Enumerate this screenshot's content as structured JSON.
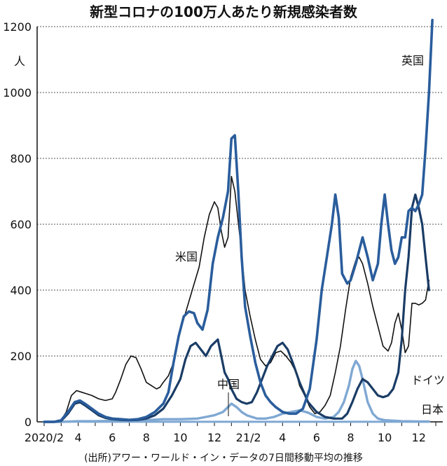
{
  "chart_data": {
    "type": "line",
    "title": "新型コロナの100万人あたり新規感染者数",
    "source": "(出所)アワー・ワールド・イン・データの7日間移動平均の推移",
    "yunit": "人",
    "ylim": [
      0,
      1200
    ],
    "yticks": [
      0,
      200,
      400,
      600,
      800,
      1000,
      1200
    ],
    "xlim": [
      0,
      23
    ],
    "xticks": [
      {
        "x": 0,
        "label": "2020/2"
      },
      {
        "x": 2,
        "label": "4"
      },
      {
        "x": 4,
        "label": "6"
      },
      {
        "x": 6,
        "label": "8"
      },
      {
        "x": 8,
        "label": "10"
      },
      {
        "x": 10,
        "label": "12"
      },
      {
        "x": 12,
        "label": "21/2"
      },
      {
        "x": 14,
        "label": "4"
      },
      {
        "x": 16,
        "label": "6"
      },
      {
        "x": 18,
        "label": "8"
      },
      {
        "x": 20,
        "label": "10"
      },
      {
        "x": 22,
        "label": "12"
      }
    ],
    "grid": true,
    "series": [
      {
        "name": "米国",
        "color": "#111111",
        "x": [
          0,
          0.5,
          1,
          1.3,
          1.6,
          1.9,
          2.2,
          2.5,
          2.8,
          3.2,
          3.6,
          4,
          4.2,
          4.5,
          4.8,
          5.1,
          5.4,
          5.7,
          6,
          6.3,
          6.6,
          6.8,
          7,
          7.3,
          7.6,
          7.9,
          8.3,
          8.7,
          9.1,
          9.4,
          9.7,
          10,
          10.2,
          10.4,
          10.6,
          10.8,
          11,
          11.2,
          11.5,
          11.8,
          12.1,
          12.4,
          12.7,
          13,
          13.3,
          13.6,
          13.9,
          14.2,
          14.5,
          14.8,
          15,
          15.3,
          15.6,
          15.9,
          16.2,
          16.5,
          16.8,
          17.1,
          17.4,
          17.7,
          18,
          18.3,
          18.5,
          18.7,
          19,
          19.3,
          19.6,
          19.9,
          20.2,
          20.4,
          20.6,
          20.8,
          21,
          21.2,
          21.4,
          21.6,
          21.8,
          22,
          22.2,
          22.4,
          22.6
        ],
        "y": [
          0,
          0,
          5,
          30,
          80,
          95,
          90,
          85,
          80,
          70,
          65,
          70,
          90,
          130,
          175,
          200,
          195,
          160,
          120,
          110,
          100,
          105,
          120,
          140,
          180,
          260,
          330,
          400,
          470,
          560,
          630,
          668,
          650,
          580,
          530,
          560,
          745,
          700,
          560,
          400,
          320,
          250,
          190,
          170,
          180,
          210,
          215,
          200,
          180,
          150,
          110,
          80,
          45,
          25,
          30,
          50,
          80,
          150,
          230,
          340,
          440,
          490,
          500,
          480,
          420,
          350,
          290,
          230,
          215,
          240,
          300,
          330,
          280,
          210,
          230,
          360,
          360,
          355,
          360,
          370,
          430
        ]
      },
      {
        "name": "英国",
        "color": "#2a5d9c",
        "x": [
          0,
          0.6,
          1,
          1.4,
          1.8,
          2.1,
          2.4,
          2.8,
          3.2,
          3.6,
          4,
          4.5,
          5,
          5.5,
          6,
          6.5,
          7,
          7.3,
          7.6,
          7.9,
          8.2,
          8.5,
          8.8,
          9,
          9.3,
          9.6,
          9.9,
          10.2,
          10.5,
          10.8,
          11,
          11.2,
          11.4,
          11.6,
          11.8,
          12.1,
          12.4,
          12.7,
          13,
          13.3,
          13.6,
          14,
          14.4,
          14.8,
          15.2,
          15.6,
          16,
          16.3,
          16.6,
          16.9,
          17.1,
          17.3,
          17.5,
          17.8,
          18,
          18.3,
          18.5,
          18.7,
          19,
          19.3,
          19.6,
          19.8,
          20,
          20.2,
          20.4,
          20.6,
          20.8,
          21,
          21.2,
          21.4,
          21.6,
          21.8,
          22,
          22.2,
          22.4,
          22.6,
          22.8
        ],
        "y": [
          0,
          0,
          5,
          30,
          60,
          65,
          55,
          40,
          25,
          15,
          10,
          8,
          6,
          8,
          15,
          30,
          55,
          90,
          180,
          260,
          320,
          335,
          330,
          300,
          280,
          340,
          480,
          560,
          620,
          700,
          860,
          870,
          700,
          500,
          350,
          260,
          180,
          120,
          80,
          60,
          45,
          30,
          25,
          25,
          40,
          100,
          250,
          400,
          500,
          600,
          690,
          620,
          450,
          420,
          430,
          480,
          520,
          560,
          500,
          430,
          480,
          600,
          690,
          600,
          520,
          480,
          500,
          560,
          560,
          640,
          650,
          640,
          660,
          690,
          830,
          1000,
          1220
        ]
      },
      {
        "name": "ドイツ",
        "color": "#1a3c66",
        "x": [
          0,
          0.6,
          1,
          1.4,
          1.8,
          2.1,
          2.4,
          2.8,
          3.2,
          3.6,
          4,
          4.5,
          5,
          5.5,
          6,
          6.5,
          7,
          7.5,
          8,
          8.3,
          8.6,
          8.9,
          9.2,
          9.5,
          9.8,
          10,
          10.2,
          10.4,
          10.6,
          10.8,
          11,
          11.3,
          11.6,
          11.9,
          12.2,
          12.5,
          12.8,
          13.1,
          13.4,
          13.7,
          14,
          14.3,
          14.6,
          15,
          15.5,
          16,
          16.5,
          17,
          17.5,
          17.8,
          18.1,
          18.4,
          18.7,
          19,
          19.3,
          19.6,
          19.9,
          20.2,
          20.5,
          20.8,
          21,
          21.2,
          21.4,
          21.6,
          21.8,
          22,
          22.2,
          22.4,
          22.6
        ],
        "y": [
          0,
          0,
          3,
          25,
          55,
          60,
          50,
          35,
          20,
          12,
          8,
          6,
          5,
          6,
          10,
          20,
          40,
          80,
          130,
          190,
          230,
          240,
          220,
          200,
          230,
          240,
          250,
          200,
          150,
          130,
          100,
          70,
          60,
          55,
          60,
          90,
          130,
          170,
          200,
          230,
          240,
          220,
          180,
          120,
          60,
          30,
          15,
          10,
          10,
          25,
          60,
          100,
          130,
          120,
          100,
          80,
          75,
          80,
          100,
          150,
          250,
          400,
          500,
          650,
          690,
          650,
          600,
          500,
          400
        ]
      },
      {
        "name": "日本",
        "color": "#7fa8d3",
        "x": [
          0,
          1,
          2,
          3,
          4,
          5,
          6,
          7,
          8,
          9,
          9.5,
          10,
          10.5,
          10.8,
          11,
          11.3,
          11.6,
          11.9,
          12.2,
          12.5,
          13,
          13.5,
          14,
          14.5,
          15,
          15.5,
          16,
          16.5,
          17,
          17.3,
          17.6,
          17.9,
          18.1,
          18.3,
          18.5,
          18.7,
          19,
          19.3,
          19.6,
          20,
          21,
          22,
          22.6
        ],
        "y": [
          0,
          0,
          2,
          2,
          3,
          3,
          5,
          8,
          8,
          10,
          15,
          20,
          30,
          45,
          55,
          45,
          30,
          20,
          15,
          10,
          10,
          15,
          25,
          30,
          35,
          28,
          15,
          10,
          15,
          30,
          60,
          110,
          160,
          185,
          170,
          130,
          60,
          25,
          10,
          5,
          2,
          1,
          1
        ]
      },
      {
        "name": "中国",
        "color": "#7fa8d3",
        "x": [
          0,
          1,
          2,
          4,
          8,
          12,
          16,
          20,
          22.6
        ],
        "y": [
          0,
          0.5,
          0.5,
          0.3,
          0.2,
          0.2,
          0.2,
          0.2,
          0.2
        ]
      }
    ]
  }
}
